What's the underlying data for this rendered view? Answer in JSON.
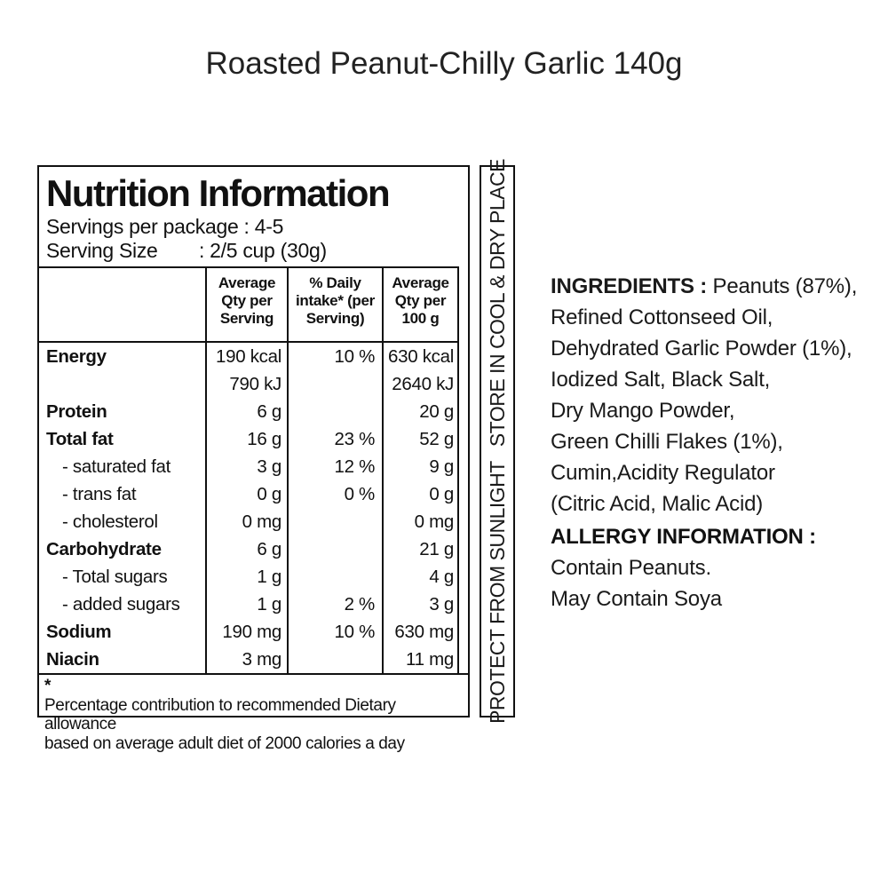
{
  "page_title": "Roasted Peanut-Chilly Garlic 140g",
  "nutrition": {
    "title": "Nutrition Information",
    "servings_line": "Servings per package : 4-5",
    "serving_size_label": "Serving Size",
    "serving_size_value": ": 2/5 cup (30g)",
    "columns": [
      "",
      "Average\nQty per\nServing",
      "% Daily\nintake* (per\nServing)",
      "Average\nQty per\n100 g"
    ],
    "rows": [
      {
        "label": "Energy",
        "bold": true,
        "indent": false,
        "serving": "190 kcal",
        "daily": "10 %",
        "per100": "630 kcal"
      },
      {
        "label": "",
        "bold": false,
        "indent": false,
        "serving": "790 kJ",
        "daily": "",
        "per100": "2640 kJ"
      },
      {
        "label": "Protein",
        "bold": true,
        "indent": false,
        "serving": "6 g",
        "daily": "",
        "per100": "20 g"
      },
      {
        "label": "Total fat",
        "bold": true,
        "indent": false,
        "serving": "16 g",
        "daily": "23 %",
        "per100": "52 g"
      },
      {
        "label": "- saturated fat",
        "bold": false,
        "indent": true,
        "serving": "3 g",
        "daily": "12 %",
        "per100": "9 g"
      },
      {
        "label": "- trans fat",
        "bold": false,
        "indent": true,
        "serving": "0 g",
        "daily": "0 %",
        "per100": "0 g"
      },
      {
        "label": "- cholesterol",
        "bold": false,
        "indent": true,
        "serving": "0 mg",
        "daily": "",
        "per100": "0 mg"
      },
      {
        "label": "Carbohydrate",
        "bold": true,
        "indent": false,
        "serving": "6 g",
        "daily": "",
        "per100": "21 g"
      },
      {
        "label": "- Total sugars",
        "bold": false,
        "indent": true,
        "serving": "1 g",
        "daily": "",
        "per100": "4 g"
      },
      {
        "label": "- added sugars",
        "bold": false,
        "indent": true,
        "serving": "1 g",
        "daily": "2 %",
        "per100": "3 g"
      },
      {
        "label": "Sodium",
        "bold": true,
        "indent": false,
        "serving": "190 mg",
        "daily": "10 %",
        "per100": "630 mg"
      },
      {
        "label": "Niacin",
        "bold": true,
        "indent": false,
        "serving": "3 mg",
        "daily": "",
        "per100": "11 mg"
      }
    ],
    "footnote_star": "*",
    "footnote": "Percentage contribution to recommended Dietary allowance\nbased on average adult diet of 2000 calories a day"
  },
  "side_label": {
    "part1": "PROTECT FROM SUNLIGHT",
    "part2": "STORE IN COOL & DRY PLACE"
  },
  "ingredients": {
    "label": "INGREDIENTS :",
    "text": "Peanuts (87%),\nRefined Cottonseed Oil,\nDehydrated Garlic Powder (1%),\nIodized Salt, Black Salt,\nDry Mango Powder,\nGreen Chilli Flakes (1%),\nCumin,Acidity Regulator\n(Citric Acid, Malic Acid)"
  },
  "allergy": {
    "label": "ALLERGY INFORMATION :",
    "text": "Contain Peanuts.\nMay Contain Soya"
  },
  "colors": {
    "ink": "#111111",
    "background": "#ffffff"
  }
}
